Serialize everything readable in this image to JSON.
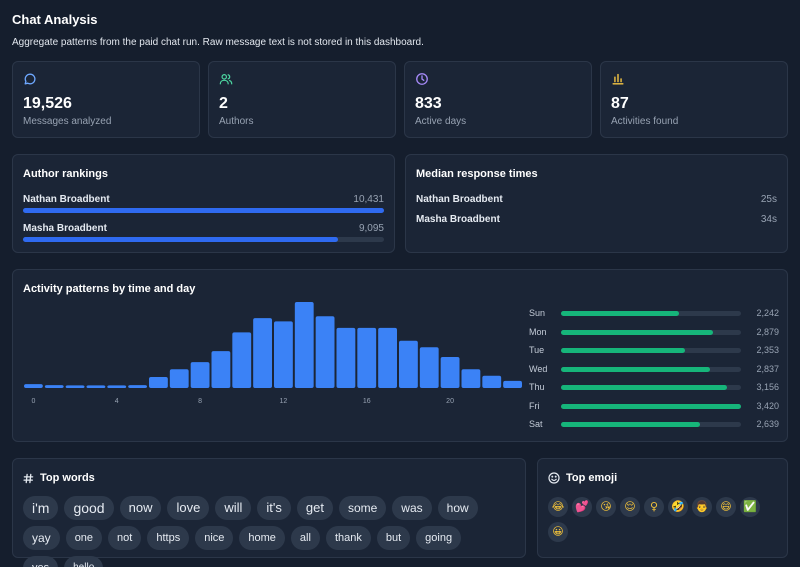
{
  "header": {
    "title": "Chat Analysis",
    "subtitle": "Aggregate patterns from the paid chat run. Raw message text is not stored in this dashboard."
  },
  "stats": [
    {
      "icon": "message-icon",
      "value": "19,526",
      "label": "Messages analyzed",
      "color": "#6ea8ff"
    },
    {
      "icon": "users-icon",
      "value": "2",
      "label": "Authors",
      "color": "#4cd4a0"
    },
    {
      "icon": "clock-icon",
      "value": "833",
      "label": "Active days",
      "color": "#a78bfa"
    },
    {
      "icon": "bar-chart-icon",
      "value": "87",
      "label": "Activities found",
      "color": "#f5c542"
    }
  ],
  "author_rankings": {
    "title": "Author rankings",
    "authors": [
      {
        "name": "Nathan Broadbent",
        "count": "10,431",
        "value": 10431
      },
      {
        "name": "Masha Broadbent",
        "count": "9,095",
        "value": 9095
      }
    ]
  },
  "response_times": {
    "title": "Median response times",
    "rows": [
      {
        "name": "Nathan Broadbent",
        "time": "25s"
      },
      {
        "name": "Masha Broadbent",
        "time": "34s"
      }
    ]
  },
  "activity": {
    "title": "Activity patterns by time and day",
    "chart_data": {
      "type": "bar",
      "x": [
        0,
        1,
        2,
        3,
        4,
        5,
        6,
        7,
        8,
        9,
        10,
        11,
        12,
        13,
        14,
        15,
        16,
        17,
        18,
        19,
        20,
        21,
        22,
        23
      ],
      "tick_labels": [
        "0",
        "4",
        "8",
        "12",
        "16",
        "20"
      ],
      "tick_positions": [
        0,
        4,
        8,
        12,
        16,
        20
      ],
      "values": [
        60,
        45,
        40,
        40,
        40,
        45,
        170,
        290,
        400,
        570,
        860,
        1080,
        1030,
        1330,
        1110,
        930,
        930,
        930,
        730,
        630,
        480,
        290,
        190,
        110
      ],
      "ymax": 1330,
      "bar_color": "#3b82f6"
    },
    "days": [
      {
        "day": "Sun",
        "count": "2,242",
        "value": 2242
      },
      {
        "day": "Mon",
        "count": "2,879",
        "value": 2879
      },
      {
        "day": "Tue",
        "count": "2,353",
        "value": 2353
      },
      {
        "day": "Wed",
        "count": "2,837",
        "value": 2837
      },
      {
        "day": "Thu",
        "count": "3,156",
        "value": 3156
      },
      {
        "day": "Fri",
        "count": "3,420",
        "value": 3420
      },
      {
        "day": "Sat",
        "count": "2,639",
        "value": 2639
      }
    ],
    "day_max": 3420
  },
  "top_words": {
    "title": "Top words",
    "icon": "hash-icon",
    "words": [
      {
        "word": "i'm",
        "size": 14
      },
      {
        "word": "good",
        "size": 14
      },
      {
        "word": "now",
        "size": 13
      },
      {
        "word": "love",
        "size": 13
      },
      {
        "word": "will",
        "size": 13
      },
      {
        "word": "it's",
        "size": 13
      },
      {
        "word": "get",
        "size": 13
      },
      {
        "word": "some",
        "size": 12
      },
      {
        "word": "was",
        "size": 12
      },
      {
        "word": "how",
        "size": 12
      },
      {
        "word": "yay",
        "size": 12
      },
      {
        "word": "one",
        "size": 11
      },
      {
        "word": "not",
        "size": 11
      },
      {
        "word": "https",
        "size": 11
      },
      {
        "word": "nice",
        "size": 11
      },
      {
        "word": "home",
        "size": 11
      },
      {
        "word": "all",
        "size": 11
      },
      {
        "word": "thank",
        "size": 11
      },
      {
        "word": "but",
        "size": 11
      },
      {
        "word": "going",
        "size": 11
      },
      {
        "word": "yes",
        "size": 11
      },
      {
        "word": "hello",
        "size": 10
      }
    ]
  },
  "top_emoji": {
    "title": "Top emoji",
    "icon": "smiley-icon",
    "emojis": [
      "😂",
      "💕",
      "😘",
      "😌",
      "♀",
      "🤣",
      "👨",
      "😄",
      "✅",
      "😀"
    ]
  }
}
